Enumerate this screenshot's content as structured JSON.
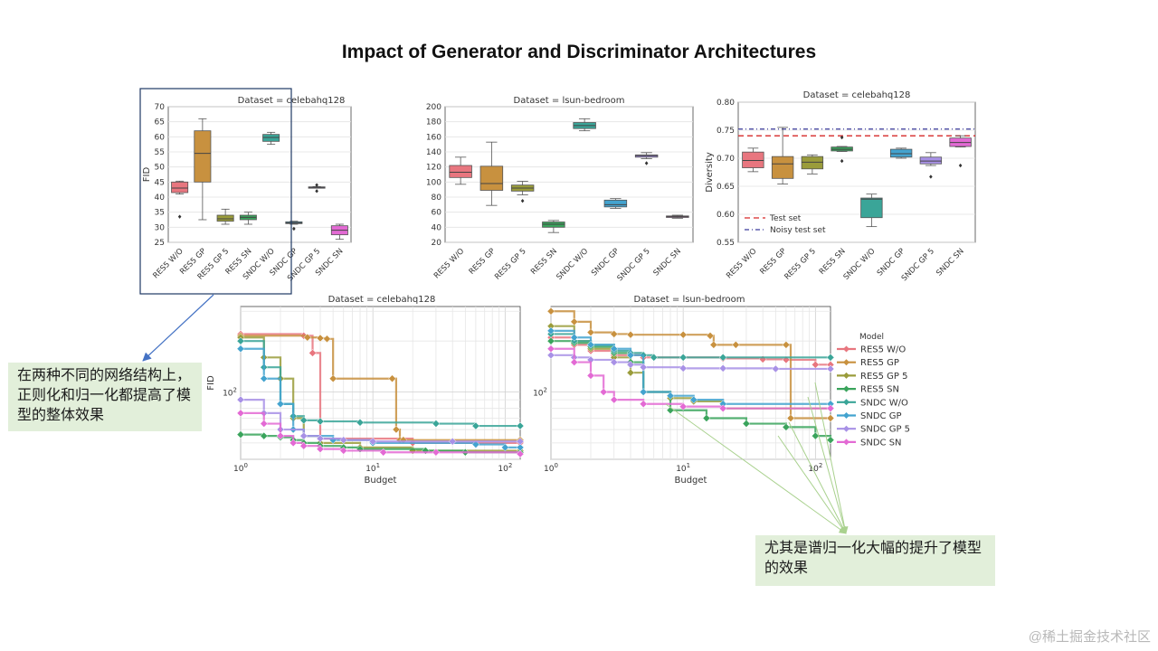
{
  "slide": {
    "title": "Impact of Generator and Discriminator Architectures",
    "watermark": "@稀土掘金技术社区"
  },
  "annotations": {
    "left_note": "在两种不同的网络结构上，正则化和归一化都提高了模型的整体效果",
    "right_note": "尤其是谱归一化大幅的提升了模型的效果"
  },
  "colors": {
    "RES5 W/O": "#e8767f",
    "RES5 GP": "#c8913f",
    "RES5 GP 5": "#9a9c3b",
    "RES5 SN": "#3aa45c",
    "SNDC W/O": "#3aa598",
    "SNDC GP": "#43a3cf",
    "SNDC GP 5": "#a891e6",
    "SNDC SN": "#e36ad4",
    "highlight_box": "#1f3864",
    "arrow_blue": "#4472c4",
    "arrow_green": "#a9d18e",
    "note_bg": "#e2efda"
  },
  "chart_data": [
    {
      "type": "box",
      "title": "Dataset = celebahq128",
      "ylabel": "FID",
      "xlabel": "",
      "ylim": [
        25,
        70
      ],
      "yticks": [
        25,
        30,
        35,
        40,
        45,
        50,
        55,
        60,
        65,
        70
      ],
      "categories": [
        "RES5 W/O",
        "RES5 GP",
        "RES5 GP 5",
        "RES5 SN",
        "SNDC W/O",
        "SNDC GP",
        "SNDC GP 5",
        "SNDC SN"
      ],
      "boxes": [
        {
          "min": 41,
          "q1": 41.5,
          "median": 43,
          "q3": 45,
          "max": 45.3,
          "outliers": [
            33.5
          ]
        },
        {
          "min": 32.5,
          "q1": 45,
          "median": 54.5,
          "q3": 62,
          "max": 66,
          "outliers": []
        },
        {
          "min": 31,
          "q1": 32,
          "median": 32.8,
          "q3": 34,
          "max": 36,
          "outliers": []
        },
        {
          "min": 31,
          "q1": 32.5,
          "median": 33.3,
          "q3": 34,
          "max": 35,
          "outliers": []
        },
        {
          "min": 57.5,
          "q1": 58.5,
          "median": 59.8,
          "q3": 60.8,
          "max": 61.5,
          "outliers": []
        },
        {
          "min": 31,
          "q1": 31.2,
          "median": 31.5,
          "q3": 31.8,
          "max": 32,
          "outliers": [
            29.5
          ]
        },
        {
          "min": 43,
          "q1": 43,
          "median": 43.2,
          "q3": 43.4,
          "max": 43.5,
          "outliers": [
            42,
            44
          ]
        },
        {
          "min": 26,
          "q1": 27.5,
          "median": 29,
          "q3": 30.5,
          "max": 31,
          "outliers": []
        }
      ]
    },
    {
      "type": "box",
      "title": "Dataset = lsun-bedroom",
      "ylabel": "",
      "xlabel": "",
      "ylim": [
        20,
        200
      ],
      "yticks": [
        20,
        40,
        60,
        80,
        100,
        120,
        140,
        160,
        180,
        200
      ],
      "categories": [
        "RES5 W/O",
        "RES5 GP",
        "RES5 GP 5",
        "RES5 SN",
        "SNDC W/O",
        "SNDC GP",
        "SNDC GP 5",
        "SNDC SN"
      ],
      "boxes": [
        {
          "min": 97,
          "q1": 106,
          "median": 113,
          "q3": 122,
          "max": 133,
          "outliers": []
        },
        {
          "min": 69,
          "q1": 89,
          "median": 98,
          "q3": 121,
          "max": 153,
          "outliers": []
        },
        {
          "min": 83,
          "q1": 88,
          "median": 92,
          "q3": 96,
          "max": 101,
          "outliers": [
            75
          ]
        },
        {
          "min": 33,
          "q1": 40,
          "median": 44,
          "q3": 47,
          "max": 49,
          "outliers": []
        },
        {
          "min": 168,
          "q1": 171,
          "median": 175,
          "q3": 179,
          "max": 184,
          "outliers": []
        },
        {
          "min": 65,
          "q1": 67,
          "median": 70,
          "q3": 76,
          "max": 78,
          "outliers": []
        },
        {
          "min": 131,
          "q1": 133,
          "median": 135,
          "q3": 136,
          "max": 139,
          "outliers": [
            125
          ]
        },
        {
          "min": 52,
          "q1": 53,
          "median": 54,
          "q3": 55,
          "max": 56,
          "outliers": []
        }
      ]
    },
    {
      "type": "box",
      "title": "Dataset = celebahq128",
      "ylabel": "Diversity",
      "xlabel": "",
      "ylim": [
        0.55,
        0.8
      ],
      "yticks": [
        0.55,
        0.6,
        0.65,
        0.7,
        0.75,
        0.8
      ],
      "categories": [
        "RES5 W/O",
        "RES5 GP",
        "RES5 GP 5",
        "RES5 SN",
        "SNDC W/O",
        "SNDC GP",
        "SNDC GP 5",
        "SNDC SN"
      ],
      "boxes": [
        {
          "min": 0.676,
          "q1": 0.683,
          "median": 0.696,
          "q3": 0.711,
          "max": 0.718,
          "outliers": []
        },
        {
          "min": 0.654,
          "q1": 0.664,
          "median": 0.69,
          "q3": 0.703,
          "max": 0.755,
          "outliers": []
        },
        {
          "min": 0.672,
          "q1": 0.681,
          "median": 0.693,
          "q3": 0.703,
          "max": 0.706,
          "outliers": []
        },
        {
          "min": 0.712,
          "q1": 0.713,
          "median": 0.716,
          "q3": 0.72,
          "max": 0.721,
          "outliers": [
            0.695,
            0.737
          ]
        },
        {
          "min": 0.578,
          "q1": 0.594,
          "median": 0.627,
          "q3": 0.629,
          "max": 0.636,
          "outliers": []
        },
        {
          "min": 0.7,
          "q1": 0.702,
          "median": 0.708,
          "q3": 0.716,
          "max": 0.718,
          "outliers": []
        },
        {
          "min": 0.687,
          "q1": 0.69,
          "median": 0.695,
          "q3": 0.702,
          "max": 0.71,
          "outliers": [
            0.667
          ]
        },
        {
          "min": 0.72,
          "q1": 0.721,
          "median": 0.728,
          "q3": 0.736,
          "max": 0.74,
          "outliers": [
            0.687
          ]
        }
      ],
      "reference_lines": [
        {
          "label": "Test set",
          "value": 0.74,
          "color": "#d62728",
          "style": "dashed"
        },
        {
          "label": "Noisy test set",
          "value": 0.752,
          "color": "#3b3b9c",
          "style": "dashdot"
        }
      ],
      "legend_position": "lower-left"
    },
    {
      "type": "line",
      "title": "Dataset = celebahq128",
      "xlabel": "Budget",
      "ylabel": "FID",
      "xscale": "log",
      "yscale": "log",
      "xlim": [
        1,
        130
      ],
      "xtick_labels": [
        "10^0",
        "10^1",
        "10^2"
      ],
      "ytick_labels": [
        "10^2"
      ],
      "series": [
        {
          "name": "RES5 W/O",
          "x": [
            1,
            3.0,
            3.5,
            4.0,
            20,
            130
          ],
          "y": [
            220,
            215,
            170,
            53,
            50,
            50
          ]
        },
        {
          "name": "RES5 GP",
          "x": [
            1,
            3.2,
            4.0,
            4.5,
            5.0,
            14,
            15,
            16,
            17,
            130
          ],
          "y": [
            215,
            210,
            208,
            206,
            120,
            120,
            60,
            52,
            52,
            52
          ]
        },
        {
          "name": "RES5 GP 5",
          "x": [
            1,
            1.5,
            2.0,
            2.5,
            3.0,
            4.0,
            8,
            20,
            130
          ],
          "y": [
            210,
            160,
            120,
            70,
            55,
            50,
            47,
            45,
            45
          ]
        },
        {
          "name": "RES5 SN",
          "x": [
            1,
            1.5,
            2.0,
            2.5,
            3.0,
            4.0,
            6.0,
            8,
            25,
            50,
            130
          ],
          "y": [
            56,
            55,
            54,
            52,
            50,
            48,
            47,
            46,
            45,
            44,
            44
          ]
        },
        {
          "name": "SNDC W/O",
          "x": [
            1,
            1.5,
            2.0,
            2.5,
            3.0,
            4.0,
            8,
            30,
            60,
            130
          ],
          "y": [
            200,
            140,
            85,
            72,
            68,
            67,
            66,
            65,
            63,
            63
          ]
        },
        {
          "name": "SNDC GP",
          "x": [
            1,
            1.5,
            2.0,
            2.5,
            3.0,
            5.0,
            10,
            60,
            100,
            130
          ],
          "y": [
            180,
            120,
            85,
            60,
            55,
            52,
            50,
            49,
            47,
            47
          ]
        },
        {
          "name": "SNDC GP 5",
          "x": [
            1,
            1.5,
            2.0,
            3.0,
            4.0,
            6.0,
            10,
            40,
            130
          ],
          "y": [
            90,
            75,
            60,
            55,
            53,
            52,
            51,
            51,
            51
          ]
        },
        {
          "name": "SNDC SN",
          "x": [
            1,
            1.5,
            2.0,
            2.5,
            3.0,
            4.0,
            6.0,
            12,
            30,
            130
          ],
          "y": [
            75,
            65,
            55,
            50,
            48,
            46,
            45,
            44,
            44,
            43
          ]
        }
      ]
    },
    {
      "type": "line",
      "title": "Dataset = lsun-bedroom",
      "xlabel": "Budget",
      "ylabel": "",
      "xscale": "log",
      "yscale": "log",
      "xlim": [
        1,
        130
      ],
      "xtick_labels": [
        "10^0",
        "10^1",
        "10^2"
      ],
      "ytick_labels": [
        "10^2"
      ],
      "series": [
        {
          "name": "RES5 W/O",
          "x": [
            1,
            1.5,
            2.0,
            3.0,
            5.0,
            10,
            20,
            40,
            60,
            100,
            130
          ],
          "y": [
            210,
            190,
            175,
            165,
            160,
            160,
            158,
            156,
            155,
            145,
            145
          ]
        },
        {
          "name": "RES5 GP",
          "x": [
            1,
            1.5,
            2.0,
            3.0,
            4.0,
            10,
            16,
            17,
            25,
            60,
            65,
            130
          ],
          "y": [
            300,
            260,
            225,
            220,
            218,
            218,
            215,
            190,
            190,
            190,
            70,
            70
          ]
        },
        {
          "name": "RES5 GP 5",
          "x": [
            1,
            1.5,
            2.0,
            3.0,
            4.0,
            5.0,
            8,
            12,
            20,
            130
          ],
          "y": [
            245,
            200,
            180,
            160,
            130,
            100,
            92,
            88,
            80,
            80
          ]
        },
        {
          "name": "RES5 SN",
          "x": [
            1,
            1.5,
            2.0,
            3.0,
            4.0,
            5.0,
            8,
            15,
            30,
            60,
            100,
            130
          ],
          "y": [
            200,
            195,
            185,
            170,
            150,
            100,
            78,
            70,
            65,
            62,
            55,
            52
          ]
        },
        {
          "name": "SNDC W/O",
          "x": [
            1,
            1.5,
            2.0,
            3.0,
            4.0,
            5.0,
            6.0,
            10,
            20,
            130
          ],
          "y": [
            220,
            200,
            190,
            175,
            170,
            165,
            160,
            160,
            160,
            160
          ]
        },
        {
          "name": "SNDC GP",
          "x": [
            1,
            1.5,
            2.0,
            3.0,
            4.0,
            5.0,
            8,
            12,
            20,
            130
          ],
          "y": [
            230,
            210,
            190,
            180,
            165,
            100,
            95,
            90,
            85,
            85
          ]
        },
        {
          "name": "SNDC GP 5",
          "x": [
            1,
            1.5,
            2.0,
            3.0,
            4.0,
            5.0,
            10,
            20,
            50,
            130
          ],
          "y": [
            165,
            160,
            155,
            150,
            145,
            140,
            138,
            138,
            137,
            137
          ]
        },
        {
          "name": "SNDC SN",
          "x": [
            1,
            1.5,
            2.0,
            2.5,
            3.0,
            5.0,
            10,
            20,
            130
          ],
          "y": [
            180,
            150,
            125,
            100,
            90,
            85,
            82,
            80,
            80
          ]
        }
      ],
      "legend": {
        "title": "Model",
        "entries": [
          "RES5 W/O",
          "RES5 GP",
          "RES5 GP 5",
          "RES5 SN",
          "SNDC W/O",
          "SNDC GP",
          "SNDC GP 5",
          "SNDC SN"
        ],
        "position": "right"
      }
    }
  ]
}
